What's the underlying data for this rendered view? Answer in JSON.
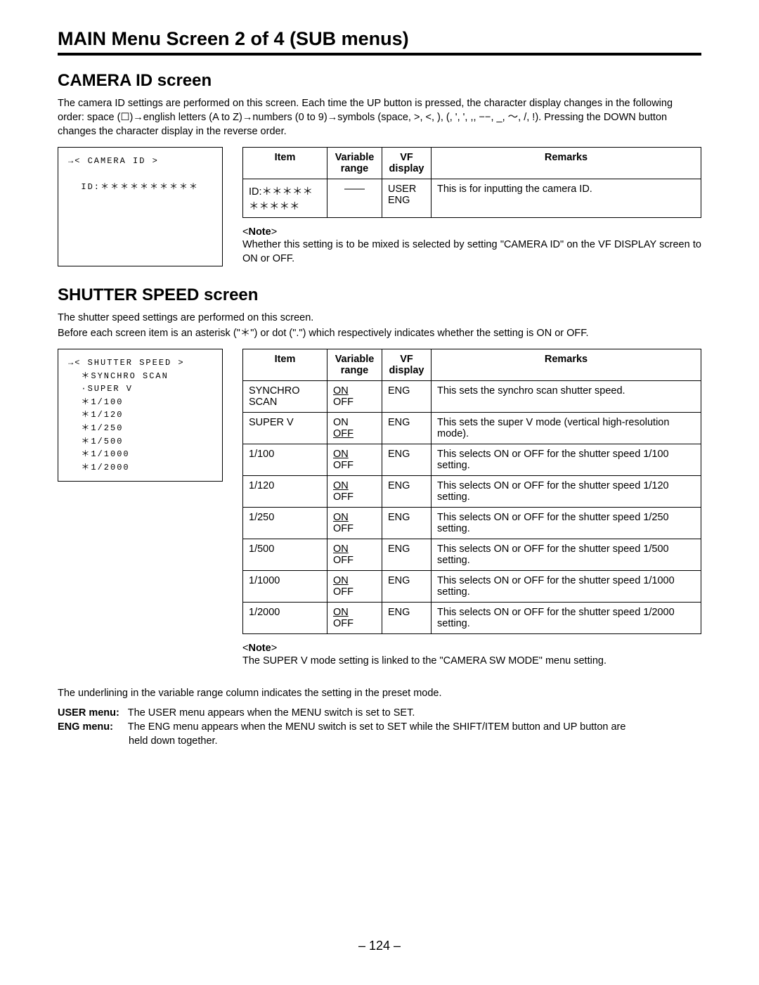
{
  "page": {
    "main_title": "MAIN Menu Screen 2 of 4 (SUB menus)",
    "page_number": "– 124 –"
  },
  "camera_id": {
    "title": "CAMERA ID screen",
    "intro": "The camera ID settings are performed on this screen. Each time the UP button is pressed, the character display changes in the following order: space (☐)→english letters (A to Z)→numbers (0 to 9)→symbols (space, >, <, ), (, ', ', ,, −−, _, ～, /, !). Pressing the DOWN button changes the character display in the reverse order.",
    "screen_lines": [
      "→< CAMERA ID >",
      "",
      "  ID:＊＊＊＊＊＊＊＊＊＊"
    ],
    "table": {
      "headers": [
        "Item",
        "Variable range",
        "VF display",
        "Remarks"
      ],
      "rows": [
        {
          "item": "ID:＊＊＊＊＊＊＊＊＊＊",
          "var": "——",
          "vf_lines": [
            "USER",
            "ENG"
          ],
          "remark": "This is for inputting the camera ID."
        }
      ]
    },
    "note_head": "<Note>",
    "note_body": "Whether this setting is to be mixed is selected by setting \"CAMERA ID\" on the VF DISPLAY screen to ON or OFF."
  },
  "shutter": {
    "title": "SHUTTER SPEED screen",
    "intro_l1": "The shutter speed settings are performed on this screen.",
    "intro_l2": "Before each screen item is an asterisk (\"＊\") or dot (\".\") which respectively indicates whether the setting is ON or OFF.",
    "screen_lines": [
      "→< SHUTTER SPEED >",
      "  ＊SYNCHRO SCAN",
      "  ·SUPER V",
      "  ＊1/100",
      "  ＊1/120",
      "  ＊1/250",
      "  ＊1/500",
      "  ＊1/1000",
      "  ＊1/2000"
    ],
    "table": {
      "headers": [
        "Item",
        "Variable range",
        "VF display",
        "Remarks"
      ],
      "rows": [
        {
          "item_lines": [
            "SYNCHRO",
            "SCAN"
          ],
          "var_u": "ON",
          "var_b": "OFF",
          "vf": "ENG",
          "remark": "This sets the synchro scan shutter speed."
        },
        {
          "item_lines": [
            "SUPER V"
          ],
          "var_t": "ON",
          "var_u2": "OFF",
          "vf": "ENG",
          "remark": "This sets the super V mode (vertical high-resolution mode)."
        },
        {
          "item_lines": [
            "1/100"
          ],
          "var_u": "ON",
          "var_b": "OFF",
          "vf": "ENG",
          "remark": "This selects ON or OFF for the shutter speed 1/100 setting."
        },
        {
          "item_lines": [
            "1/120"
          ],
          "var_u": "ON",
          "var_b": "OFF",
          "vf": "ENG",
          "remark": "This selects ON or OFF for the shutter speed 1/120 setting."
        },
        {
          "item_lines": [
            "1/250"
          ],
          "var_u": "ON",
          "var_b": "OFF",
          "vf": "ENG",
          "remark": "This selects ON or OFF for the shutter speed 1/250 setting."
        },
        {
          "item_lines": [
            "1/500"
          ],
          "var_u": "ON",
          "var_b": "OFF",
          "vf": "ENG",
          "remark": "This selects ON or OFF for the shutter speed 1/500 setting."
        },
        {
          "item_lines": [
            "1/1000"
          ],
          "var_u": "ON",
          "var_b": "OFF",
          "vf": "ENG",
          "remark": "This selects ON or OFF for the shutter speed 1/1000 setting."
        },
        {
          "item_lines": [
            "1/2000"
          ],
          "var_u": "ON",
          "var_b": "OFF",
          "vf": "ENG",
          "remark": "This selects ON or OFF for the shutter speed 1/2000 setting."
        }
      ]
    },
    "note_head": "<Note>",
    "note_body": "The SUPER V mode setting is linked to the \"CAMERA SW MODE\" menu setting."
  },
  "underline_note": "The underlining in the variable range column indicates the setting in the preset mode.",
  "menu_defs": {
    "user_label": "USER menu:",
    "user_text": "The USER menu appears when the MENU switch is set to SET.",
    "eng_label": "ENG menu:",
    "eng_text_l1": "The ENG menu appears when the MENU switch is set to SET while the SHIFT/ITEM button and UP button are",
    "eng_text_l2": "held down together."
  }
}
